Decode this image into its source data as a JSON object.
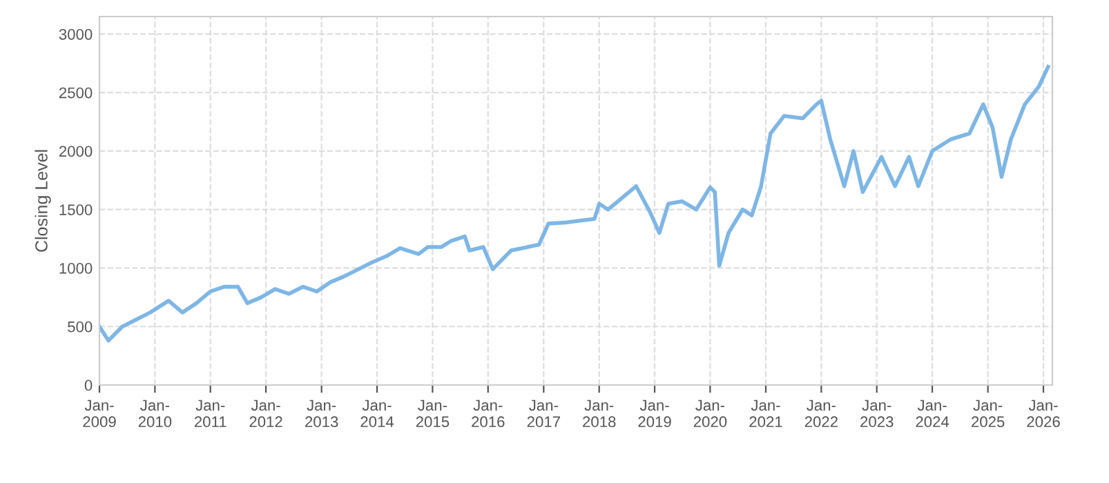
{
  "chart_data": {
    "type": "line",
    "ylabel": "Closing Level",
    "x": [
      "2009-01",
      "2009-03",
      "2009-06",
      "2009-09",
      "2009-12",
      "2010-04",
      "2010-07",
      "2010-10",
      "2011-01",
      "2011-04",
      "2011-07",
      "2011-09",
      "2011-12",
      "2012-03",
      "2012-06",
      "2012-09",
      "2012-12",
      "2013-03",
      "2013-06",
      "2013-12",
      "2014-03",
      "2014-06",
      "2014-10",
      "2014-12",
      "2015-03",
      "2015-05",
      "2015-08",
      "2015-09",
      "2015-12",
      "2016-02",
      "2016-06",
      "2016-12",
      "2017-02",
      "2017-06",
      "2017-12",
      "2018-01",
      "2018-03",
      "2018-09",
      "2018-12",
      "2019-02",
      "2019-04",
      "2019-07",
      "2019-10",
      "2020-01",
      "2020-02",
      "2020-03",
      "2020-05",
      "2020-08",
      "2020-10",
      "2020-12",
      "2021-02",
      "2021-05",
      "2021-09",
      "2021-12",
      "2022-01",
      "2022-03",
      "2022-06",
      "2022-08",
      "2022-10",
      "2023-02",
      "2023-05",
      "2023-08",
      "2023-10",
      "2024-01",
      "2024-05",
      "2024-09",
      "2024-12",
      "2025-02",
      "2025-04",
      "2025-06",
      "2025-09",
      "2025-12",
      "2026-02"
    ],
    "series": [
      {
        "color": "#7eb6e6",
        "values": [
          500,
          380,
          500,
          560,
          620,
          720,
          620,
          700,
          800,
          840,
          840,
          700,
          750,
          820,
          780,
          840,
          800,
          880,
          930,
          1050,
          1100,
          1170,
          1120,
          1180,
          1180,
          1230,
          1270,
          1150,
          1180,
          990,
          1150,
          1200,
          1380,
          1390,
          1420,
          1550,
          1500,
          1700,
          1480,
          1300,
          1550,
          1570,
          1500,
          1690,
          1650,
          1020,
          1300,
          1500,
          1450,
          1700,
          2150,
          2300,
          2280,
          2400,
          2430,
          2100,
          1700,
          2000,
          1650,
          1950,
          1700,
          1950,
          1700,
          2000,
          2100,
          2150,
          2400,
          2200,
          1780,
          2100,
          2400,
          2550,
          2720
        ]
      }
    ],
    "xlim": [
      "2009-01",
      "2026-03"
    ],
    "xticks": [
      {
        "value": "2009-01",
        "label": "Jan-\n2009"
      },
      {
        "value": "2010-01",
        "label": "Jan-\n2010"
      },
      {
        "value": "2011-01",
        "label": "Jan-\n2011"
      },
      {
        "value": "2012-01",
        "label": "Jan-\n2012"
      },
      {
        "value": "2013-01",
        "label": "Jan-\n2013"
      },
      {
        "value": "2014-01",
        "label": "Jan-\n2014"
      },
      {
        "value": "2015-01",
        "label": "Jan-\n2015"
      },
      {
        "value": "2016-01",
        "label": "Jan-\n2016"
      },
      {
        "value": "2017-01",
        "label": "Jan-\n2017"
      },
      {
        "value": "2018-01",
        "label": "Jan-\n2018"
      },
      {
        "value": "2019-01",
        "label": "Jan-\n2019"
      },
      {
        "value": "2020-01",
        "label": "Jan-\n2020"
      },
      {
        "value": "2021-01",
        "label": "Jan-\n2021"
      },
      {
        "value": "2022-01",
        "label": "Jan-\n2022"
      },
      {
        "value": "2023-01",
        "label": "Jan-\n2023"
      },
      {
        "value": "2024-01",
        "label": "Jan-\n2024"
      },
      {
        "value": "2025-01",
        "label": "Jan-\n2025"
      },
      {
        "value": "2026-01",
        "label": "Jan-\n2026"
      }
    ],
    "ylim": [
      0,
      3150
    ],
    "yticks": [
      0,
      500,
      1000,
      1500,
      2000,
      2500,
      3000
    ],
    "grid": true,
    "marker": "none",
    "line_style": "solid",
    "legend": false
  }
}
